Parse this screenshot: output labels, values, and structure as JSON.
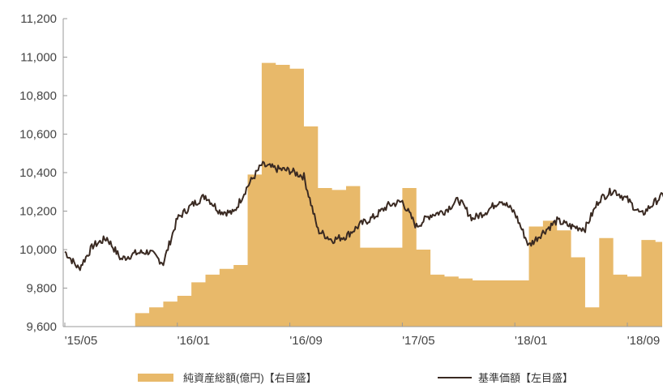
{
  "chart_data": {
    "type": "area",
    "x_axis": {
      "tick_labels": [
        "'15/05",
        "'16/01",
        "'16/09",
        "'17/05",
        "'18/01",
        "'18/09"
      ]
    },
    "y_axis_left": {
      "range": [
        9600,
        11200
      ],
      "ticks": [
        9600,
        9800,
        10000,
        10200,
        10400,
        10600,
        10800,
        11000,
        11200
      ],
      "tick_labels": [
        "9,600",
        "9,800",
        "10,000",
        "10,200",
        "10,400",
        "10,600",
        "10,800",
        "11,000",
        "11,200"
      ]
    },
    "y_axis_right": {
      "labels_visible": false
    },
    "grid": false,
    "legend_position": "bottom",
    "series": [
      {
        "name": "純資産総額(億円)【右目盛】",
        "type": "area",
        "axis": "right",
        "color": "#e8b96a",
        "note_values_in_left_scale_equivalent": false,
        "x": [
          "2015-05",
          "2015-09",
          "2015-10",
          "2015-11",
          "2015-12",
          "2016-01",
          "2016-02",
          "2016-03",
          "2016-04",
          "2016-05",
          "2016-06",
          "2016-07",
          "2016-08",
          "2016-09",
          "2016-10",
          "2016-11",
          "2016-12",
          "2017-01",
          "2017-02",
          "2017-03",
          "2017-04",
          "2017-05",
          "2017-06",
          "2017-07",
          "2017-08",
          "2017-09",
          "2017-10",
          "2017-11",
          "2017-12",
          "2018-01",
          "2018-02",
          "2018-03",
          "2018-04",
          "2018-05",
          "2018-06",
          "2018-07",
          "2018-08",
          "2018-09",
          "2018-10",
          "2018-11",
          "2018-12"
        ],
        "values": [
          9600,
          9600,
          9670,
          9700,
          9730,
          9760,
          9830,
          9870,
          9900,
          9920,
          10390,
          10970,
          10960,
          10940,
          10640,
          10320,
          10310,
          10330,
          10010,
          10010,
          10010,
          10320,
          10000,
          9870,
          9860,
          9850,
          9840,
          9840,
          9840,
          9840,
          10120,
          10150,
          10100,
          9960,
          9700,
          10060,
          9870,
          9860,
          10050,
          10040,
          10040
        ]
      },
      {
        "name": "基準価額【左目盛】",
        "type": "line",
        "axis": "left",
        "color": "#3a2a22",
        "x": [
          "2015-05",
          "2015-06",
          "2015-07",
          "2015-08",
          "2015-09",
          "2015-10",
          "2015-11",
          "2015-12",
          "2016-01",
          "2016-02",
          "2016-03",
          "2016-04",
          "2016-05",
          "2016-06",
          "2016-07",
          "2016-08",
          "2016-09",
          "2016-10",
          "2016-11",
          "2016-12",
          "2017-01",
          "2017-02",
          "2017-03",
          "2017-04",
          "2017-05",
          "2017-06",
          "2017-07",
          "2017-08",
          "2017-09",
          "2017-10",
          "2017-11",
          "2017-12",
          "2018-01",
          "2018-02",
          "2018-03",
          "2018-04",
          "2018-05",
          "2018-06",
          "2018-07",
          "2018-08",
          "2018-09",
          "2018-10",
          "2018-11",
          "2018-12"
        ],
        "values": [
          9990,
          9900,
          10020,
          10060,
          9950,
          9980,
          9990,
          9930,
          10160,
          10230,
          10280,
          10200,
          10190,
          10330,
          10440,
          10420,
          10410,
          10380,
          10100,
          10050,
          10070,
          10130,
          10170,
          10230,
          10250,
          10120,
          10180,
          10200,
          10260,
          10160,
          10200,
          10260,
          10190,
          10020,
          10090,
          10150,
          10120,
          10110,
          10260,
          10310,
          10260,
          10180,
          10250,
          10310
        ]
      }
    ]
  },
  "colors": {
    "area_fill": "#e8b96a",
    "line_stroke": "#3a2a22",
    "axis": "#999999",
    "tick_text": "#444444"
  }
}
